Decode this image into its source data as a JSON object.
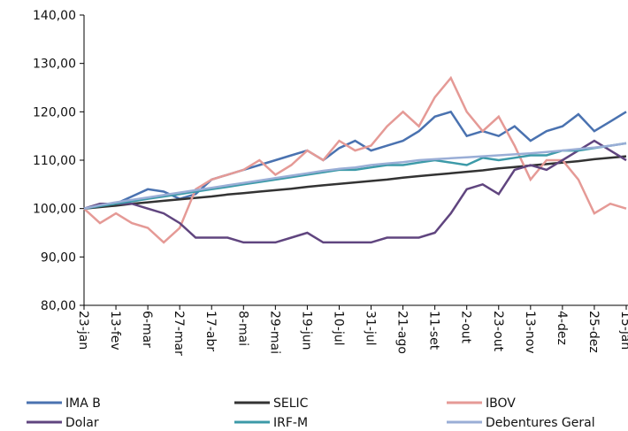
{
  "chart_data": {
    "type": "line",
    "categories": [
      "23-jan",
      null,
      "13-fev",
      null,
      "6-mar",
      null,
      "27-mar",
      null,
      "17-abr",
      null,
      "8-mai",
      null,
      "29-mai",
      null,
      "19-jun",
      null,
      "10-jul",
      null,
      "31-jul",
      null,
      "21-ago",
      null,
      "11-set",
      null,
      "2-out",
      null,
      "23-out",
      null,
      "13-nov",
      null,
      "4-dez",
      null,
      "25-dez",
      null,
      "15-jan"
    ],
    "ylim": [
      80,
      140
    ],
    "yticks": [
      {
        "value": 80,
        "label": "80,00"
      },
      {
        "value": 90,
        "label": "90,00"
      },
      {
        "value": 100,
        "label": "100,00"
      },
      {
        "value": 110,
        "label": "110,00"
      },
      {
        "value": 120,
        "label": "120,00"
      },
      {
        "value": 130,
        "label": "130,00"
      },
      {
        "value": 140,
        "label": "140,00"
      }
    ],
    "series": [
      {
        "name": "IMA B",
        "color": "#4a72b0",
        "values": [
          100,
          100.5,
          101,
          102.5,
          104,
          103.5,
          102,
          103,
          106,
          107,
          108,
          109,
          110,
          111,
          112,
          110,
          112.5,
          114,
          112,
          113,
          114,
          116,
          119,
          120,
          115,
          116,
          115,
          117,
          114,
          116,
          117,
          119.5,
          116,
          118,
          120
        ]
      },
      {
        "name": "SELIC",
        "color": "#333333",
        "values": [
          100,
          100.3,
          100.6,
          101,
          101.3,
          101.6,
          101.9,
          102.2,
          102.5,
          102.9,
          103.2,
          103.5,
          103.8,
          104.1,
          104.5,
          104.8,
          105.1,
          105.4,
          105.7,
          106,
          106.4,
          106.7,
          107,
          107.3,
          107.6,
          107.9,
          108.3,
          108.6,
          108.9,
          109.2,
          109.5,
          109.8,
          110.2,
          110.5,
          110.8
        ]
      },
      {
        "name": "IBOV",
        "color": "#e59a96",
        "values": [
          100,
          97,
          99,
          97,
          96,
          93,
          96,
          104,
          106,
          107,
          108,
          110,
          107,
          109,
          112,
          110,
          114,
          112,
          113,
          117,
          120,
          117,
          123,
          127,
          120,
          116,
          119,
          113,
          106,
          110,
          110,
          106,
          99,
          101,
          100
        ]
      },
      {
        "name": "Dolar",
        "color": "#60457f",
        "values": [
          100,
          101,
          101,
          101,
          100,
          99,
          97,
          94,
          94,
          94,
          93,
          93,
          93,
          94,
          95,
          93,
          93,
          93,
          93,
          94,
          94,
          94,
          95,
          99,
          104,
          105,
          103,
          108,
          109,
          108,
          110,
          112,
          114,
          112,
          110
        ]
      },
      {
        "name": "IRF-M",
        "color": "#3c9aa8",
        "values": [
          100,
          100.5,
          101,
          101.5,
          102,
          102.5,
          103,
          103.5,
          104,
          104.5,
          105,
          105.5,
          106,
          106.5,
          107,
          107.5,
          108,
          108,
          108.5,
          109,
          109,
          109.5,
          110,
          109.5,
          109,
          110.5,
          110,
          110.5,
          111,
          111,
          112,
          112,
          112.5,
          113,
          113.5
        ]
      },
      {
        "name": "Debentures  Geral",
        "color": "#9aaed6",
        "values": [
          100,
          100.7,
          101.3,
          101.8,
          102.3,
          102.8,
          103.3,
          103.8,
          104.3,
          104.8,
          105.3,
          105.8,
          106.3,
          106.8,
          107.3,
          107.8,
          108.2,
          108.5,
          109,
          109.3,
          109.6,
          110,
          110.2,
          110.4,
          110.6,
          110.8,
          111,
          111.2,
          111.4,
          111.7,
          112,
          112.3,
          112.6,
          113,
          113.5
        ]
      }
    ]
  }
}
